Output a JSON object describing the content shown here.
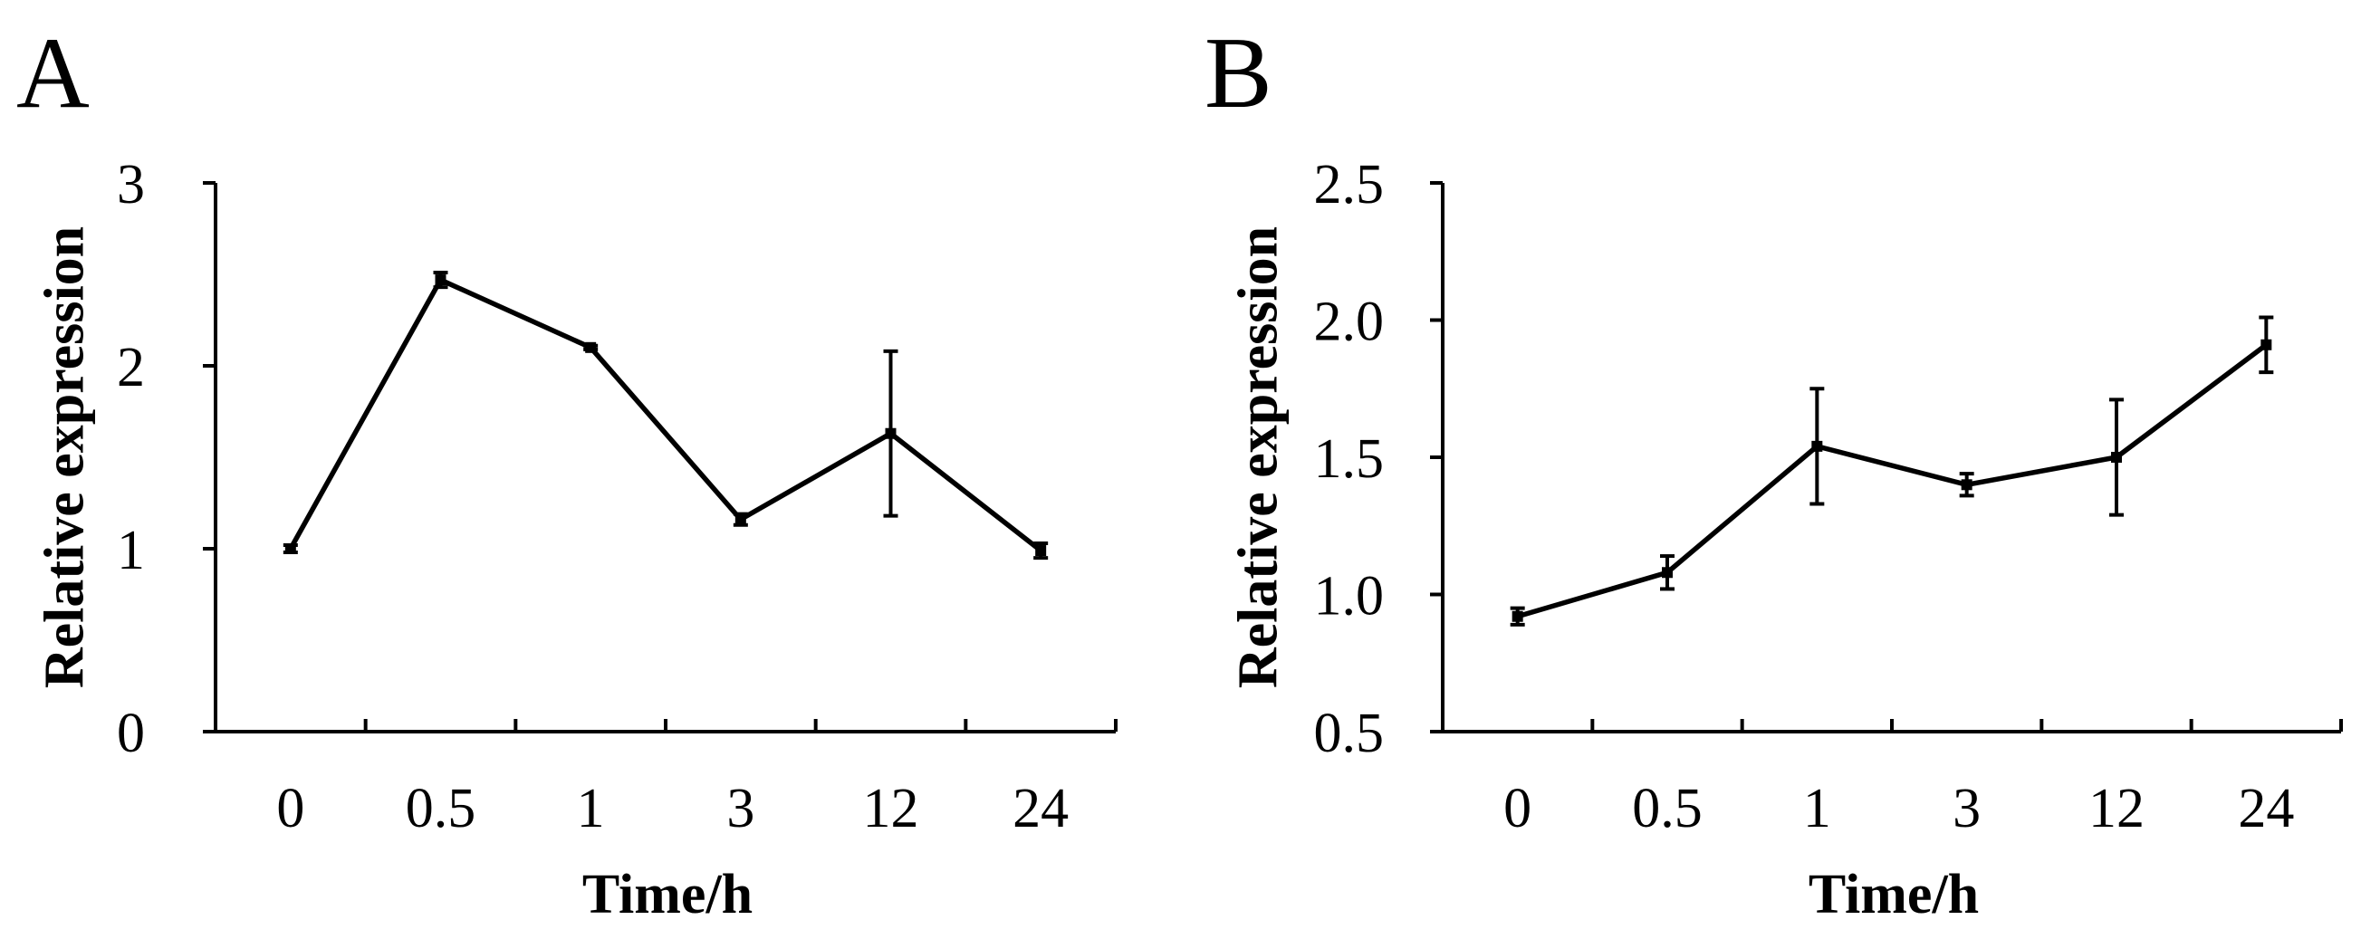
{
  "chart_data": [
    {
      "panel": "A",
      "type": "line",
      "categories": [
        "0",
        "0.5",
        "1",
        "3",
        "12",
        "24"
      ],
      "values": [
        1.0,
        2.47,
        2.1,
        1.16,
        1.63,
        0.99
      ],
      "errors": [
        0.02,
        0.04,
        0.01,
        0.03,
        0.45,
        0.04
      ],
      "xlabel": "Time/h",
      "ylabel": "Relative expression",
      "ylim": [
        0,
        3
      ],
      "yticks": [
        "0",
        "1",
        "2",
        "3"
      ]
    },
    {
      "panel": "B",
      "type": "line",
      "categories": [
        "0",
        "0.5",
        "1",
        "3",
        "12",
        "24"
      ],
      "values": [
        0.92,
        1.08,
        1.54,
        1.4,
        1.5,
        1.91
      ],
      "errors": [
        0.03,
        0.06,
        0.21,
        0.04,
        0.21,
        0.1
      ],
      "xlabel": "Time/h",
      "ylabel": "Relative expression",
      "ylim": [
        0.5,
        2.5
      ],
      "yticks": [
        "0.5",
        "1.0",
        "1.5",
        "2.0",
        "2.5"
      ]
    }
  ]
}
